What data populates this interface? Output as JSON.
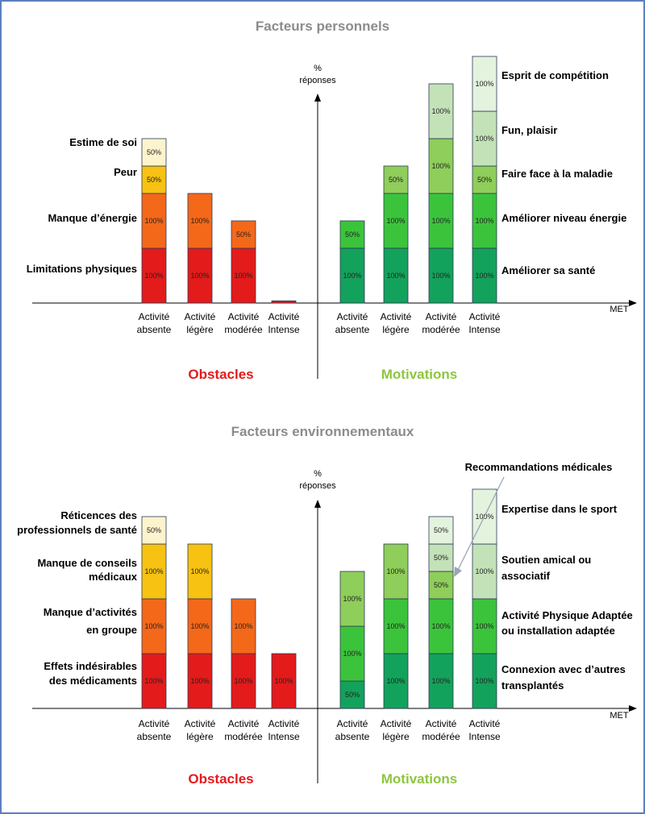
{
  "chart_data": [
    {
      "type": "bar",
      "stacked": true,
      "title": "Facteurs personnels",
      "ylabel_top": "%",
      "ylabel_bottom": "réponses",
      "xlabel": "MET",
      "categories": [
        [
          "Activité",
          "absente"
        ],
        [
          "Activité",
          "légère"
        ],
        [
          "Activité",
          "modérée"
        ],
        [
          "Activité",
          "Intense"
        ]
      ],
      "obstacles": {
        "title": "Obstacles",
        "series": [
          {
            "name": "Limitations physiques",
            "color": "#e31b1b",
            "values": [
              100,
              100,
              100,
              4
            ],
            "labels": [
              "100%",
              "100%",
              "100%",
              ""
            ]
          },
          {
            "name": "Manque d’énergie",
            "color": "#f4681a",
            "values": [
              100,
              100,
              50,
              0
            ],
            "labels": [
              "100%",
              "100%",
              "50%",
              ""
            ]
          },
          {
            "name": "Peur",
            "color": "#f7c211",
            "values": [
              50,
              0,
              0,
              0
            ],
            "labels": [
              "50%",
              "",
              "",
              ""
            ]
          },
          {
            "name": "Estime de soi",
            "color": "#fdf3cc",
            "values": [
              50,
              0,
              0,
              0
            ],
            "labels": [
              "50%",
              "",
              "",
              ""
            ]
          }
        ]
      },
      "motivations": {
        "title": "Motivations",
        "series": [
          {
            "name": "Améliorer sa santé",
            "color": "#13a25b",
            "values": [
              100,
              100,
              100,
              100
            ],
            "labels": [
              "100%",
              "100%",
              "100%",
              "100%"
            ]
          },
          {
            "name": "Améliorer niveau énergie",
            "color": "#3bc43b",
            "values": [
              50,
              100,
              100,
              100
            ],
            "labels": [
              "50%",
              "100%",
              "100%",
              "100%"
            ]
          },
          {
            "name": "Faire face à la maladie",
            "color": "#8fce5a",
            "values": [
              0,
              50,
              100,
              50
            ],
            "labels": [
              "",
              "50%",
              "100%",
              "50%"
            ]
          },
          {
            "name": "Fun, plaisir",
            "color": "#c4e2b8",
            "values": [
              0,
              0,
              100,
              100
            ],
            "labels": [
              "",
              "",
              "100%",
              "100%"
            ]
          },
          {
            "name": "Esprit de compétition",
            "color": "#e4f3de",
            "values": [
              0,
              0,
              0,
              100
            ],
            "labels": [
              "",
              "",
              "",
              "100%"
            ]
          }
        ]
      }
    },
    {
      "type": "bar",
      "stacked": true,
      "title": "Facteurs environnementaux",
      "ylabel_top": "%",
      "ylabel_bottom": "réponses",
      "xlabel": "MET",
      "categories": [
        [
          "Activité",
          "absente"
        ],
        [
          "Activité",
          "légère"
        ],
        [
          "Activité",
          "modérée"
        ],
        [
          "Activité",
          "Intense"
        ]
      ],
      "obstacles": {
        "title": "Obstacles",
        "series": [
          {
            "name": "Effets indésirables des médicaments",
            "color": "#e31b1b",
            "values": [
              100,
              100,
              100,
              100
            ],
            "labels": [
              "100%",
              "100%",
              "100%",
              "100%"
            ]
          },
          {
            "name": "Manque d’activités en groupe",
            "color": "#f4681a",
            "values": [
              100,
              100,
              100,
              0
            ],
            "labels": [
              "100%",
              "100%",
              "100%",
              ""
            ]
          },
          {
            "name": "Manque de conseils médicaux",
            "color": "#f7c211",
            "values": [
              100,
              100,
              0,
              0
            ],
            "labels": [
              "100%",
              "100%",
              "",
              ""
            ]
          },
          {
            "name": "Réticences des professionnels de santé",
            "color": "#fdf3cc",
            "values": [
              50,
              0,
              0,
              0
            ],
            "labels": [
              "50%",
              "",
              "",
              ""
            ]
          }
        ]
      },
      "motivations": {
        "title": "Motivations",
        "series": [
          {
            "name": "Connexion avec d’autres transplantés",
            "color": "#13a25b",
            "values": [
              50,
              100,
              100,
              100
            ],
            "labels": [
              "50%",
              "100%",
              "100%",
              "100%"
            ]
          },
          {
            "name": "Activité Physique Adaptée ou installation adaptée",
            "color": "#3bc43b",
            "values": [
              100,
              100,
              100,
              100
            ],
            "labels": [
              "100%",
              "100%",
              "100%",
              "100%"
            ]
          },
          {
            "name": "Recommandations médicales",
            "color": "#8fce5a",
            "values": [
              100,
              100,
              50,
              0
            ],
            "labels": [
              "100%",
              "100%",
              "50%",
              ""
            ]
          },
          {
            "name": "Soutien amical ou associatif",
            "color": "#c4e2b8",
            "values": [
              0,
              0,
              50,
              100
            ],
            "labels": [
              "",
              "",
              "50%",
              "100%"
            ]
          },
          {
            "name": "Expertise dans le sport",
            "color": "#e4f3de",
            "values": [
              0,
              0,
              50,
              100
            ],
            "labels": [
              "",
              "",
              "50%",
              "100%"
            ]
          }
        ]
      }
    }
  ],
  "legend_labels": {
    "p1_left": [
      [
        "Estime de soi"
      ],
      [
        "Peur"
      ],
      [
        "Manque d’énergie"
      ],
      [
        "Limitations physiques"
      ]
    ],
    "p1_right": [
      [
        "Esprit de compétition"
      ],
      [
        "Fun, plaisir"
      ],
      [
        "Faire face à la maladie"
      ],
      [
        "Améliorer niveau énergie"
      ],
      [
        "Améliorer sa santé"
      ]
    ],
    "p2_left": [
      [
        "Réticences des",
        "professionnels de santé"
      ],
      [
        "Manque de conseils",
        "médicaux"
      ],
      [
        "Manque d’activités",
        "en groupe"
      ],
      [
        "Effets indésirables",
        "des médicaments"
      ]
    ],
    "p2_right": [
      [
        "Expertise dans le sport"
      ],
      [
        "Soutien amical ou",
        "associatif"
      ],
      [
        "Activité Physique Adaptée",
        "ou installation adaptée"
      ],
      [
        "Connexion avec d’autres",
        "transplantés"
      ]
    ],
    "p2_callout": "Recommandations médicales"
  }
}
